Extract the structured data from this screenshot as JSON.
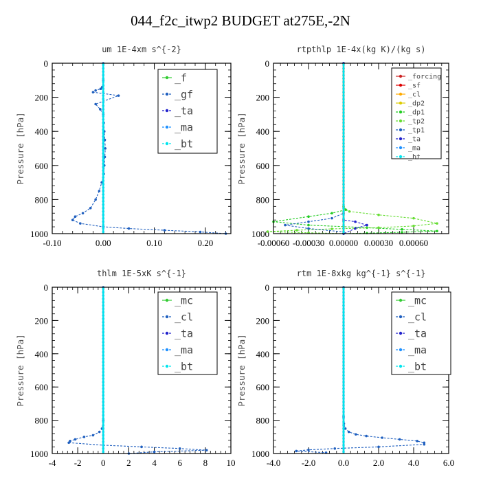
{
  "title": "044_f2c_itwp2  BUDGET at275E,-2N",
  "chart_data": [
    {
      "type": "line",
      "title": "um  1E-4xm s^{-2}",
      "ylabel": "Pressure [hPa]",
      "xlim": [
        -0.1,
        0.25
      ],
      "ylim": [
        1000,
        0
      ],
      "xticks": [
        -0.1,
        0.0,
        0.1,
        0.2
      ],
      "xtick_labels": [
        "-0.10",
        "0.00",
        "0.10",
        "0.20"
      ],
      "yticks": [
        0,
        200,
        400,
        600,
        800,
        1000
      ],
      "ytick_labels": [
        "0",
        "200",
        "400",
        "600",
        "800",
        "1000"
      ],
      "legend": "top-right",
      "series": [
        {
          "name": "_f",
          "color": "#33cc33",
          "style": "solid",
          "x": [
            0,
            0
          ],
          "y": [
            0,
            1000
          ]
        },
        {
          "name": "_gf",
          "color": "#1f5fbf",
          "style": "dashed",
          "x": [
            0,
            0,
            0,
            -0.002,
            -0.005,
            -0.015,
            -0.02,
            0.03,
            -0.015,
            -0.006,
            0,
            0.001,
            0.002,
            0.003,
            0.004,
            0.003,
            0.002,
            0.001,
            -0.003,
            -0.008,
            -0.015,
            -0.025,
            -0.04,
            -0.055,
            -0.06,
            -0.045,
            0.0,
            0.05,
            0.12,
            0.19,
            0.24
          ],
          "y": [
            0,
            100,
            130,
            140,
            150,
            160,
            170,
            190,
            240,
            270,
            300,
            350,
            400,
            450,
            500,
            550,
            600,
            650,
            700,
            750,
            800,
            850,
            880,
            900,
            920,
            940,
            960,
            970,
            980,
            990,
            1000
          ]
        },
        {
          "name": "_ta",
          "color": "#2222cc",
          "style": "dashed",
          "x": [
            0,
            0
          ],
          "y": [
            0,
            1000
          ]
        },
        {
          "name": "_ma",
          "color": "#1e90ff",
          "style": "dashed",
          "x": [
            0,
            0
          ],
          "y": [
            0,
            1000
          ]
        },
        {
          "name": "_bt",
          "color": "#00e5ee",
          "style": "dashed",
          "x": [
            0,
            0
          ],
          "y": [
            0,
            1000
          ]
        }
      ]
    },
    {
      "type": "line",
      "title": "rtpthlp  1E-4x(kg K)/(kg s)",
      "ylabel": "Pressure [hPa]",
      "xlim": [
        -0.0006,
        0.0009
      ],
      "ylim": [
        1000,
        0
      ],
      "xticks": [
        -0.0006,
        -0.0003,
        0.0,
        0.0003,
        0.0006
      ],
      "xtick_labels": [
        "-0.00060",
        "-0.00030",
        "0.00000",
        "0.00030",
        "0.00060"
      ],
      "yticks": [
        0,
        200,
        400,
        600,
        800,
        1000
      ],
      "ytick_labels": [
        "0",
        "200",
        "400",
        "600",
        "800",
        "1000"
      ],
      "legend": "top-right",
      "series": [
        {
          "name": "_forcing",
          "color": "#cc2222",
          "style": "solid",
          "x": [
            0,
            0
          ],
          "y": [
            0,
            1000
          ]
        },
        {
          "name": "_sf",
          "color": "#dd0000",
          "style": "solid",
          "x": [
            0,
            0
          ],
          "y": [
            0,
            1000
          ]
        },
        {
          "name": "_cl",
          "color": "#ffaa00",
          "style": "solid",
          "x": [
            0,
            0
          ],
          "y": [
            0,
            1000
          ]
        },
        {
          "name": "_dp2",
          "color": "#ddcc00",
          "style": "solid",
          "x": [
            0,
            0
          ],
          "y": [
            0,
            1000
          ]
        },
        {
          "name": "_dp1",
          "color": "#22cc22",
          "style": "dashed",
          "x": [
            0,
            0,
            2e-05,
            -0.0001,
            -0.0003,
            -0.0006,
            -0.0003,
            0.0002,
            0.0005,
            0.0008,
            0.0005,
            0.0002,
            0.0
          ],
          "y": [
            0,
            840,
            860,
            880,
            900,
            930,
            950,
            965,
            975,
            985,
            992,
            997,
            1000
          ]
        },
        {
          "name": "_tp2",
          "color": "#66dd33",
          "style": "dashed",
          "x": [
            0,
            0,
            5e-05,
            0.0003,
            0.0006,
            0.0008,
            0.0006,
            0.0003,
            -0.0001,
            -0.0004,
            -0.00065,
            -0.0003,
            0.0
          ],
          "y": [
            0,
            850,
            870,
            890,
            910,
            940,
            955,
            965,
            972,
            980,
            988,
            995,
            1000
          ]
        },
        {
          "name": "_tp1",
          "color": "#1f5fbf",
          "style": "dashed",
          "x": [
            0,
            0,
            -0.0001,
            -0.0003,
            -0.0005,
            -0.0003,
            0.0,
            0.0
          ],
          "y": [
            0,
            880,
            910,
            930,
            950,
            970,
            990,
            1000
          ]
        },
        {
          "name": "_ta",
          "color": "#2222cc",
          "style": "dashed",
          "x": [
            0,
            0,
            0.0001,
            0.0002,
            0.0001,
            0.0
          ],
          "y": [
            0,
            920,
            930,
            950,
            970,
            1000
          ]
        },
        {
          "name": "_ma",
          "color": "#1e90ff",
          "style": "dashed",
          "x": [
            0,
            0
          ],
          "y": [
            0,
            1000
          ]
        },
        {
          "name": "_bt",
          "color": "#00e5ee",
          "style": "dashed",
          "x": [
            0,
            0
          ],
          "y": [
            0,
            1000
          ]
        }
      ]
    },
    {
      "type": "line",
      "title": "thlm  1E-5xK s^{-1}",
      "ylabel": "Pressure [hPa]",
      "xlim": [
        -4,
        10
      ],
      "ylim": [
        1000,
        0
      ],
      "xticks": [
        -4,
        -2,
        0,
        2,
        4,
        6,
        8,
        10
      ],
      "xtick_labels": [
        "-4",
        "-2",
        "0",
        "2",
        "4",
        "6",
        "8",
        "10"
      ],
      "yticks": [
        0,
        200,
        400,
        600,
        800,
        1000
      ],
      "ytick_labels": [
        "0",
        "200",
        "400",
        "600",
        "800",
        "1000"
      ],
      "legend": "top-right",
      "series": [
        {
          "name": "_mc",
          "color": "#33cc33",
          "style": "solid",
          "x": [
            0,
            0
          ],
          "y": [
            0,
            1000
          ]
        },
        {
          "name": "_cl",
          "color": "#1f5fbf",
          "style": "dashed",
          "x": [
            0,
            0,
            -0.1,
            -0.3,
            -0.8,
            -1.5,
            -2.2,
            -2.6,
            -2.7,
            0.0,
            3.0,
            6.0,
            8.1,
            4.0,
            2.0
          ],
          "y": [
            0,
            800,
            850,
            870,
            890,
            900,
            915,
            925,
            935,
            950,
            960,
            970,
            980,
            990,
            1000
          ]
        },
        {
          "name": "_ta",
          "color": "#2222cc",
          "style": "dashed",
          "x": [
            0,
            0
          ],
          "y": [
            0,
            1000
          ]
        },
        {
          "name": "_ma",
          "color": "#1e90ff",
          "style": "dashed",
          "x": [
            0,
            0
          ],
          "y": [
            0,
            1000
          ]
        },
        {
          "name": "_bt",
          "color": "#00e5ee",
          "style": "dashed",
          "x": [
            0,
            0
          ],
          "y": [
            0,
            1000
          ]
        }
      ]
    },
    {
      "type": "line",
      "title": "rtm  1E-8xkg kg^{-1} s^{-1}",
      "ylabel": "Pressure [hPa]",
      "xlim": [
        -4,
        6
      ],
      "ylim": [
        1000,
        0
      ],
      "xticks": [
        -4,
        -2,
        0,
        2,
        4,
        6
      ],
      "xtick_labels": [
        "-4.0",
        "-2.0",
        "0.0",
        "2.0",
        "4.0",
        "6.0"
      ],
      "yticks": [
        0,
        200,
        400,
        600,
        800,
        1000
      ],
      "ytick_labels": [
        "0",
        "200",
        "400",
        "600",
        "800",
        "1000"
      ],
      "legend": "top-right",
      "series": [
        {
          "name": "_mc",
          "color": "#33cc33",
          "style": "solid",
          "x": [
            0,
            0
          ],
          "y": [
            0,
            1000
          ]
        },
        {
          "name": "_cl",
          "color": "#1f5fbf",
          "style": "dashed",
          "x": [
            0,
            0,
            0.02,
            0.1,
            0.3,
            0.7,
            1.3,
            2.2,
            3.2,
            4.2,
            4.6,
            4.6,
            2.0,
            -0.5,
            -2.0,
            -2.7,
            -1.0
          ],
          "y": [
            0,
            780,
            820,
            850,
            870,
            885,
            895,
            905,
            915,
            925,
            935,
            945,
            960,
            970,
            978,
            985,
            995
          ]
        },
        {
          "name": "_ta",
          "color": "#2222cc",
          "style": "dashed",
          "x": [
            0,
            0
          ],
          "y": [
            0,
            1000
          ]
        },
        {
          "name": "_ma",
          "color": "#1e90ff",
          "style": "dashed",
          "x": [
            0,
            0
          ],
          "y": [
            0,
            1000
          ]
        },
        {
          "name": "_bt",
          "color": "#00e5ee",
          "style": "dashed",
          "x": [
            0,
            0
          ],
          "y": [
            0,
            1000
          ]
        }
      ]
    }
  ]
}
